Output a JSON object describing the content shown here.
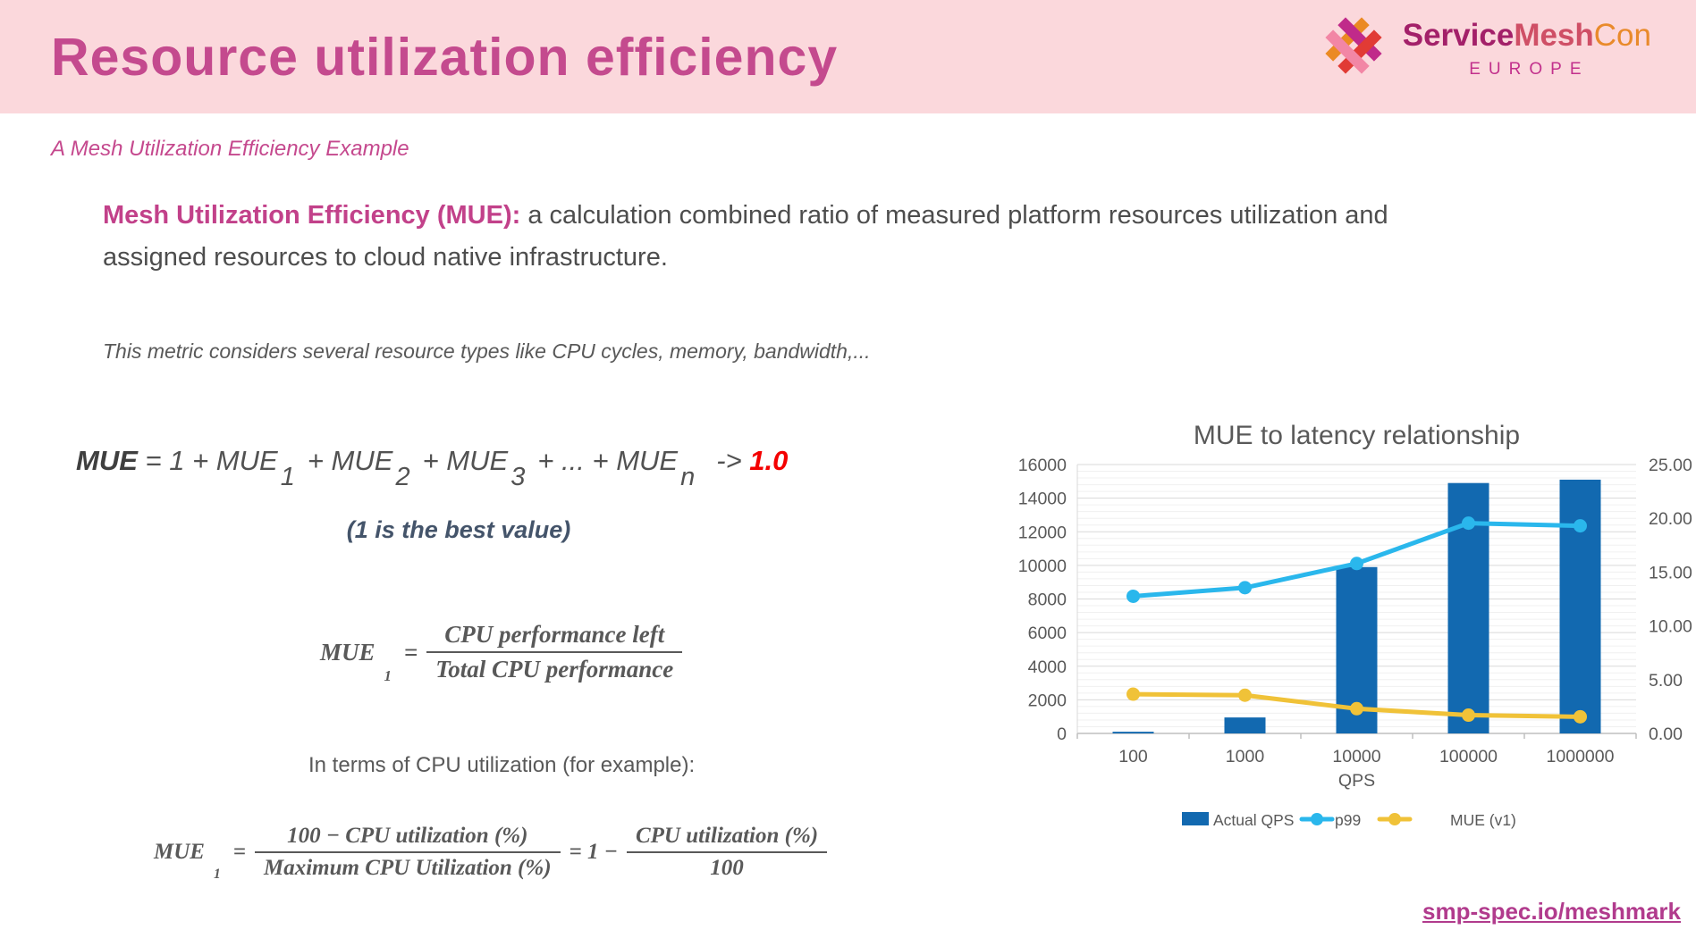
{
  "slide": {
    "title": "Resource utilization efficiency",
    "subtitle": "A Mesh Utilization Efficiency Example",
    "definition_bold": "Mesh Utilization Efficiency (MUE):",
    "definition_rest": " a calculation combined ratio of measured platform resources utilization and assigned resources to cloud native infrastructure.",
    "note": "This metric considers several resource types like CPU cycles, memory, bandwidth,...",
    "best_value": "(1 is the best value)",
    "cpu_terms": "In terms of CPU utilization (for example):",
    "footer_link": "smp-spec.io/meshmark"
  },
  "logo": {
    "brand_service": "Service",
    "brand_mesh": "Mesh",
    "brand_con": "Con",
    "region": "EUROPE",
    "colors": {
      "service": "#a32069",
      "mesh": "#cf4f66",
      "con": "#e98a2b",
      "region": "#c2308c",
      "icon_orange": "#eb8a23",
      "icon_magenta": "#c02a8a",
      "icon_red": "#e13b35",
      "icon_pink": "#f286a5"
    }
  },
  "formula_sum": {
    "lead": "MUE",
    "body1": " = 1 + MUE",
    "sub1": "1",
    "body2": "+ MUE",
    "sub2": "2",
    "body3": "+ MUE",
    "sub3": "3",
    "body4": "+ ... + MUE",
    "subn": "n",
    "arrow": "-> ",
    "target": "1.0"
  },
  "formula_mue1": {
    "lhs": "MUE",
    "lhs_sub": "1",
    "equals": "=",
    "numerator": "CPU performance left",
    "denominator": "Total CPU performance"
  },
  "formula_cpu": {
    "lhs": "MUE",
    "lhs_sub": "1",
    "equals": "=",
    "frac1_num": "100 − CPU utilization (%)",
    "frac1_den": "Maximum CPU Utilization (%)",
    "mid": "= 1 −",
    "frac2_num": "CPU utilization (%)",
    "frac2_den": "100"
  },
  "chart_data": {
    "type": "bar",
    "subtype": "bar+line combo, dual axis",
    "title": "MUE to latency relationship",
    "categories": [
      "100",
      "1000",
      "10000",
      "100000",
      "1000000"
    ],
    "xlabel": "QPS",
    "left_axis": {
      "min": 0,
      "max": 16000,
      "step": 2000,
      "minor_step": 400
    },
    "right_axis": {
      "min": 0,
      "max": 25,
      "step": 5,
      "decimals": 2
    },
    "grid": "on",
    "legend_position": "bottom",
    "series": [
      {
        "name": "Actual QPS",
        "type": "bar",
        "axis": "left",
        "color": "#1269b0",
        "values": [
          100,
          950,
          9900,
          14900,
          15100
        ]
      },
      {
        "name": "p99",
        "type": "line",
        "axis": "right",
        "color": "#2ab7ec",
        "values": [
          12.75,
          13.55,
          15.8,
          19.55,
          19.3
        ]
      },
      {
        "name": "MUE (v1)",
        "type": "line",
        "axis": "right",
        "color": "#f0c238",
        "values": [
          3.65,
          3.55,
          2.3,
          1.7,
          1.55
        ]
      }
    ]
  }
}
